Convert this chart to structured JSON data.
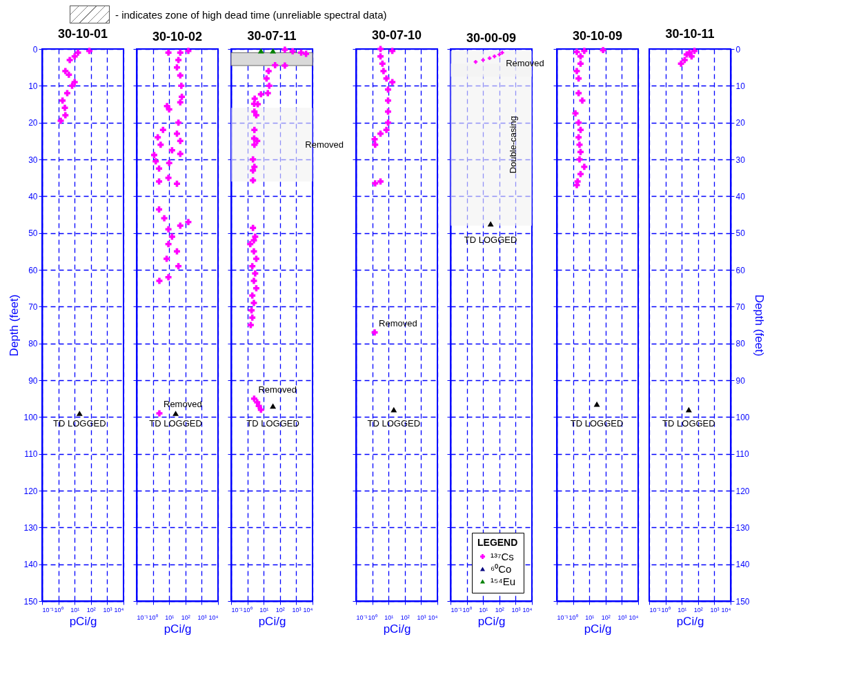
{
  "chart_data": [
    {
      "type": "scatter",
      "title": "30-10-01",
      "xlabel": "pCi/g",
      "ylabel": "Depth (feet)",
      "log": "x",
      "grid": true,
      "marker": "cross",
      "xlim": [
        0.1,
        10000
      ],
      "xticks": [
        {
          "value": 0.1,
          "label": "10⁻¹"
        },
        {
          "value": 1,
          "label": "10⁰"
        },
        {
          "value": 10,
          "label": "10¹"
        },
        {
          "value": 100,
          "label": "10²"
        },
        {
          "value": 1000,
          "label": "10³"
        },
        {
          "value": 10000,
          "label": "10⁴"
        }
      ],
      "ylim": [
        150,
        0
      ],
      "yticks": [
        0,
        10,
        20,
        30,
        40,
        50,
        60,
        70,
        80,
        90,
        100,
        110,
        120,
        130,
        140,
        150
      ],
      "series": [
        {
          "color": "#ff00ff",
          "x": [
            80,
            16,
            10,
            5,
            2.7,
            4.4,
            10,
            7,
            3.5,
            1.8,
            2.5,
            2.7,
            1.4
          ],
          "values": [
            0.5,
            1,
            2,
            3,
            6,
            7,
            9,
            10,
            12,
            14,
            16,
            18,
            19.5
          ]
        },
        {
          "color": "#000000",
          "marker": "triangle",
          "x": [
            20
          ],
          "values": [
            99
          ]
        }
      ],
      "annotations": [
        "- indicates zone of high dead time (unreliable spectral data)",
        {
          "text": "TD LOGGED",
          "x": 20,
          "y": 99
        }
      ]
    },
    {
      "type": "scatter",
      "title": "30-10-02",
      "xlabel": "pCi/g",
      "log": "x",
      "grid": true,
      "marker": "cross",
      "tick_labels": "x",
      "xlim": [
        0.1,
        10000
      ],
      "xticks": [
        {
          "value": 0.1,
          "label": "10⁻¹"
        },
        {
          "value": 1,
          "label": "10⁰"
        },
        {
          "value": 10,
          "label": "10¹"
        },
        {
          "value": 100,
          "label": "10²"
        },
        {
          "value": 1000,
          "label": "10³"
        },
        {
          "value": 10000,
          "label": "10⁴"
        }
      ],
      "ylim": [
        150,
        0
      ],
      "yticks": [
        0,
        10,
        20,
        30,
        40,
        50,
        60,
        70,
        80,
        90,
        100,
        110,
        120,
        130,
        140,
        150
      ],
      "series": [
        {
          "color": "#ff00ff",
          "x": [
            150,
            48,
            9,
            37,
            30,
            48,
            56,
            60,
            48,
            7.4,
            10,
            37,
            4.2,
            30,
            2,
            48,
            3,
            15,
            48,
            1.2,
            10,
            1.5,
            2.4,
            9,
            30,
            2.4,
            2.4,
            5,
            150,
            48,
            9,
            15,
            9,
            30,
            7,
            37,
            9,
            2.5,
            2.5
          ],
          "values": [
            0.5,
            1,
            1,
            3,
            5,
            7.2,
            10,
            13,
            14.5,
            15.5,
            16.4,
            20,
            22,
            23,
            24,
            25,
            26,
            27.5,
            28.5,
            28.8,
            31,
            30.5,
            32.5,
            35,
            36.6,
            36,
            43.6,
            46,
            47,
            48,
            49,
            51,
            53,
            55,
            57,
            59,
            62,
            63,
            99
          ]
        },
        {
          "color": "#000000",
          "marker": "triangle",
          "x": [
            25
          ],
          "values": [
            99
          ]
        }
      ],
      "annotations": [
        {
          "text": "Removed",
          "x": 2.5,
          "y": 99
        },
        {
          "text": "TD LOGGED",
          "x": 25,
          "y": 99
        }
      ]
    },
    {
      "type": "scatter",
      "title": "30-07-11",
      "xlabel": "pCi/g",
      "log": "x",
      "grid": true,
      "marker": "cross",
      "tick_labels": "x",
      "xlim": [
        0.1,
        10000
      ],
      "xticks": [
        {
          "value": 0.1,
          "label": "10⁻¹"
        },
        {
          "value": 1,
          "label": "10⁰"
        },
        {
          "value": 10,
          "label": "10¹"
        },
        {
          "value": 100,
          "label": "10²"
        },
        {
          "value": 1000,
          "label": "10³"
        },
        {
          "value": 10000,
          "label": "10⁴"
        }
      ],
      "ylim": [
        150,
        0
      ],
      "yticks": [
        0,
        10,
        20,
        30,
        40,
        50,
        60,
        70,
        80,
        90,
        100,
        110,
        120,
        130,
        140,
        150
      ],
      "series": [
        {
          "color": "#ff00ff",
          "x": [
            200,
            600,
            2000,
            4000,
            50,
            200,
            20,
            15,
            22,
            18,
            6.8,
            2.8,
            2.6,
            4.3,
            2.7,
            3.5,
            2.7,
            2.6,
            4,
            2.7,
            2.2,
            2.7,
            2.2,
            2.2,
            2.2,
            3,
            2.5,
            1.5,
            2.5,
            3.5,
            2,
            3,
            2.5,
            3.5,
            2,
            2.5,
            1.8,
            2,
            1.6,
            2.6,
            4,
            5,
            6.8
          ],
          "values": [
            0.2,
            0.6,
            1,
            1.3,
            4.4,
            4.5,
            6,
            8,
            10,
            12,
            12.3,
            13.5,
            14.9,
            15,
            17,
            18,
            22,
            24.3,
            25,
            26,
            30,
            32,
            33,
            35.7,
            48.6,
            51,
            52,
            53,
            55,
            57,
            59,
            61,
            63,
            65,
            67,
            69,
            71,
            73,
            75,
            95,
            96,
            97,
            98
          ]
        },
        {
          "color": "#008000",
          "marker": "triangle",
          "x": [
            6.8,
            37
          ],
          "values": [
            0.5,
            0.5
          ]
        },
        {
          "color": "#000000",
          "marker": "triangle",
          "x": [
            37
          ],
          "values": [
            97
          ]
        }
      ],
      "bands": [
        {
          "axis": "y",
          "from": 1,
          "to": 4.5,
          "color": "#d9d9d9"
        },
        {
          "axis": "y",
          "from": 16,
          "to": 36,
          "label": "Removed",
          "color": "#f2f2f2"
        }
      ],
      "annotations": [
        {
          "text": "Removed",
          "x": 2.6,
          "y": 95
        },
        {
          "text": "TD LOGGED",
          "x": 37,
          "y": 97
        }
      ]
    },
    {
      "type": "scatter",
      "title": "30-07-10",
      "xlabel": "pCi/g",
      "log": "x",
      "grid": true,
      "marker": "cross",
      "tick_labels": "x",
      "xlim": [
        0.1,
        10000
      ],
      "xticks": [
        {
          "value": 0.1,
          "label": "10⁻¹"
        },
        {
          "value": 1,
          "label": "10⁰"
        },
        {
          "value": 10,
          "label": "10¹"
        },
        {
          "value": 100,
          "label": "10²"
        },
        {
          "value": 1000,
          "label": "10³"
        },
        {
          "value": 10000,
          "label": "10⁴"
        }
      ],
      "ylim": [
        150,
        0
      ],
      "yticks": [
        0,
        10,
        20,
        30,
        40,
        50,
        60,
        70,
        80,
        90,
        100,
        110,
        120,
        130,
        140,
        150
      ],
      "series": [
        {
          "color": "#ff00ff",
          "x": [
            3.2,
            17,
            3.2,
            4.2,
            4.9,
            7.4,
            17,
            9.3,
            9.3,
            9.3,
            9.3,
            7.4,
            3.2,
            1.4,
            1.5,
            3.2,
            1.5,
            1.4
          ],
          "values": [
            0,
            0.5,
            2,
            4,
            6,
            8,
            9,
            11,
            14,
            17,
            20,
            22,
            23,
            24.5,
            26,
            36,
            36.5,
            77
          ]
        },
        {
          "color": "#000000",
          "marker": "triangle",
          "x": [
            21
          ],
          "values": [
            98
          ]
        }
      ],
      "annotations": [
        {
          "text": "Removed",
          "x": 1.4,
          "y": 77
        },
        {
          "text": "TD LOGGED",
          "x": 21,
          "y": 98
        }
      ]
    },
    {
      "type": "scatter",
      "title": "30-00-09",
      "xlabel": "pCi/g",
      "log": "x",
      "grid": true,
      "marker": "cross",
      "tick_labels": "x",
      "legend": "bottom right",
      "legend_title": "LEGEND",
      "xlim": [
        0.1,
        10000
      ],
      "xticks": [
        {
          "value": 0.1,
          "label": "10⁻¹"
        },
        {
          "value": 1,
          "label": "10⁰"
        },
        {
          "value": 10,
          "label": "10¹"
        },
        {
          "value": 100,
          "label": "10²"
        },
        {
          "value": 1000,
          "label": "10³"
        },
        {
          "value": 10000,
          "label": "10⁴"
        }
      ],
      "ylim": [
        150,
        0
      ],
      "yticks": [
        0,
        10,
        20,
        30,
        40,
        50,
        60,
        70,
        80,
        90,
        100,
        110,
        120,
        130,
        140,
        150
      ],
      "series": [
        {
          "name": "¹³⁷Cs",
          "color": "#ff00ff",
          "x": [
            3.5,
            10,
            25,
            50,
            100,
            150
          ],
          "values": [
            3.5,
            3,
            2.5,
            2,
            1.5,
            1
          ]
        },
        {
          "name": "⁶⁰Co",
          "color": "#000080",
          "marker": "triangle"
        },
        {
          "name": "¹⁵⁴Eu",
          "color": "#008000",
          "marker": "triangle"
        },
        {
          "color": "#000000",
          "marker": "triangle",
          "x": [
            29
          ],
          "values": [
            47.5
          ]
        }
      ],
      "bands": [
        {
          "axis": "y",
          "from": 0.5,
          "to": 7.5,
          "label": "Removed",
          "color": "#f2f2f2"
        },
        {
          "axis": "y",
          "from": 4,
          "to": 48,
          "label": "Double-casing",
          "color": "#f2f2f2"
        }
      ],
      "annotations": [
        {
          "text": "TD LOGGED",
          "x": 29,
          "y": 47.5
        }
      ]
    },
    {
      "type": "scatter",
      "title": "30-10-09",
      "xlabel": "pCi/g",
      "log": "x",
      "grid": true,
      "marker": "cross",
      "tick_labels": "x",
      "xlim": [
        0.1,
        10000
      ],
      "xticks": [
        {
          "value": 0.1,
          "label": "10⁻¹"
        },
        {
          "value": 1,
          "label": "10⁰"
        },
        {
          "value": 10,
          "label": "10¹"
        },
        {
          "value": 100,
          "label": "10²"
        },
        {
          "value": 1000,
          "label": "10³"
        },
        {
          "value": 10000,
          "label": "10⁴"
        }
      ],
      "ylim": [
        150,
        0
      ],
      "yticks": [
        0,
        10,
        20,
        30,
        40,
        50,
        60,
        70,
        80,
        90,
        100,
        110,
        120,
        130,
        140,
        150
      ],
      "series": [
        {
          "color": "#ff00ff",
          "x": [
            70,
            4.9,
            1.7,
            2.9,
            2.9,
            1.7,
            2.2,
            2.2,
            3.7,
            1.4,
            2.2,
            2.9,
            2.2,
            2.5,
            2.9,
            2.5,
            4.9,
            2.9,
            1.9,
            1.7
          ],
          "values": [
            0.3,
            0.5,
            0.8,
            2,
            4,
            6,
            8,
            12,
            14,
            17.5,
            20,
            22,
            24,
            26,
            28,
            30,
            32,
            34,
            36,
            37
          ]
        },
        {
          "color": "#000000",
          "marker": "triangle",
          "x": [
            29
          ],
          "values": [
            96.5
          ]
        }
      ],
      "annotations": [
        {
          "text": "TD LOGGED",
          "x": 29,
          "y": 96.5
        }
      ]
    },
    {
      "type": "scatter",
      "title": "30-10-11",
      "xlabel": "pCi/g",
      "ylabel": "Depth (feet)",
      "log": "x",
      "grid": true,
      "marker": "cross",
      "xlim": [
        0.1,
        10000
      ],
      "xticks": [
        {
          "value": 0.1,
          "label": "10⁻¹"
        },
        {
          "value": 1,
          "label": "10⁰"
        },
        {
          "value": 10,
          "label": "10¹"
        },
        {
          "value": 100,
          "label": "10²"
        },
        {
          "value": 1000,
          "label": "10³"
        },
        {
          "value": 10000,
          "label": "10⁴"
        }
      ],
      "ylim": [
        150,
        0
      ],
      "yticks": [
        0,
        10,
        20,
        30,
        40,
        50,
        60,
        70,
        80,
        90,
        100,
        110,
        120,
        130,
        140,
        150
      ],
      "series": [
        {
          "color": "#ff00ff",
          "x": [
            60,
            30,
            20,
            40,
            15,
            9
          ],
          "values": [
            0.5,
            1,
            1.5,
            2,
            3,
            4
          ]
        },
        {
          "color": "#000000",
          "marker": "triangle",
          "x": [
            27
          ],
          "values": [
            98
          ]
        }
      ],
      "annotations": [
        {
          "text": "TD LOGGED",
          "x": 27,
          "y": 98
        }
      ]
    }
  ]
}
